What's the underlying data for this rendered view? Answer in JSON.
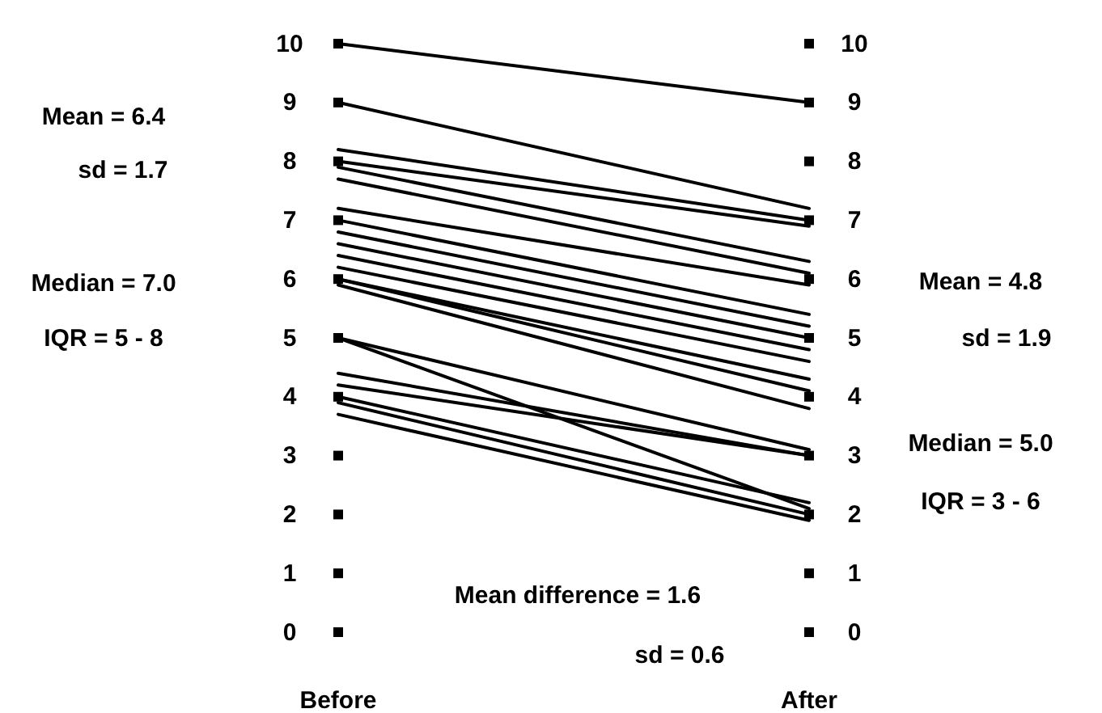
{
  "chart_data": {
    "type": "line",
    "categories": [
      "Before",
      "After"
    ],
    "ylim": [
      0,
      10
    ],
    "yticks": [
      0,
      1,
      2,
      3,
      4,
      5,
      6,
      7,
      8,
      9,
      10
    ],
    "y2lim": [
      0,
      10
    ],
    "y2ticks": [
      0,
      1,
      2,
      3,
      4,
      5,
      6,
      7,
      8,
      9,
      10
    ],
    "series": [
      {
        "color": "#000000",
        "values": [
          10,
          9
        ]
      },
      {
        "color": "#000000",
        "values": [
          9,
          7.2
        ]
      },
      {
        "color": "#000000",
        "values": [
          8.2,
          7
        ]
      },
      {
        "color": "#000000",
        "values": [
          8,
          6.9
        ]
      },
      {
        "color": "#000000",
        "values": [
          7.9,
          6.3
        ]
      },
      {
        "color": "#000000",
        "values": [
          7.7,
          6.1
        ]
      },
      {
        "color": "#000000",
        "values": [
          7.2,
          5.9
        ]
      },
      {
        "color": "#000000",
        "values": [
          7,
          5.4
        ]
      },
      {
        "color": "#000000",
        "values": [
          6.8,
          5.2
        ]
      },
      {
        "color": "#000000",
        "values": [
          6.6,
          5
        ]
      },
      {
        "color": "#000000",
        "values": [
          6.4,
          4.8
        ]
      },
      {
        "color": "#000000",
        "values": [
          6.2,
          4.6
        ]
      },
      {
        "color": "#000000",
        "values": [
          6,
          4.3
        ]
      },
      {
        "color": "#000000",
        "values": [
          6,
          4.1
        ]
      },
      {
        "color": "#000000",
        "values": [
          5.9,
          3.8
        ]
      },
      {
        "color": "#000000",
        "values": [
          5,
          3.1
        ]
      },
      {
        "color": "#000000",
        "values": [
          5,
          2.1
        ]
      },
      {
        "color": "#000000",
        "values": [
          4.4,
          3
        ]
      },
      {
        "color": "#000000",
        "values": [
          4.2,
          3
        ]
      },
      {
        "color": "#000000",
        "values": [
          4,
          2.2
        ]
      },
      {
        "color": "#000000",
        "values": [
          3.9,
          2
        ]
      },
      {
        "color": "#000000",
        "values": [
          3.7,
          1.9
        ]
      }
    ],
    "annotations": [
      "Mean = 6.4",
      "sd = 1.7",
      "Median = 7.0",
      "IQR = 5 - 8",
      "Mean = 4.8",
      "sd = 1.9",
      "Median = 5.0",
      "IQR = 3 - 6",
      "Mean difference = 1.6",
      "sd = 0.6"
    ]
  }
}
